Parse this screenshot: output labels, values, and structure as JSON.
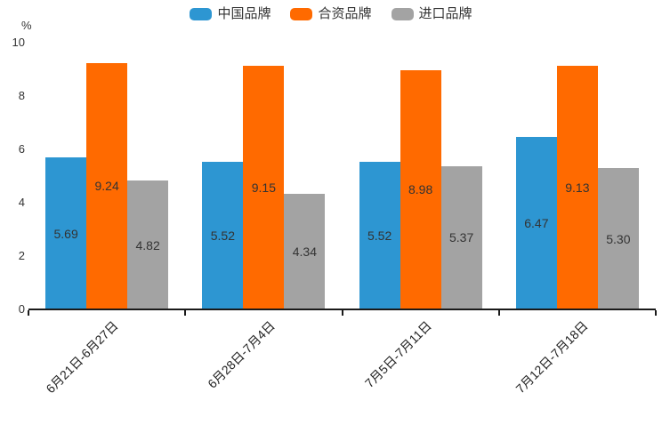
{
  "chart_data": {
    "type": "bar",
    "title": "",
    "categories": [
      "6月21日-6月27日",
      "6月28日-7月4日",
      "7月5日-7月11日",
      "7月12日-7月18日"
    ],
    "series": [
      {
        "name": "中国品牌",
        "color": "#2D96D2",
        "values": [
          5.69,
          5.52,
          5.52,
          6.47
        ]
      },
      {
        "name": "合资品牌",
        "color": "#FF6A00",
        "values": [
          9.24,
          9.15,
          8.98,
          9.13
        ]
      },
      {
        "name": "进口品牌",
        "color": "#A3A3A3",
        "values": [
          4.82,
          4.34,
          5.37,
          5.3
        ]
      }
    ],
    "xlabel": "",
    "ylabel": "%",
    "y_axis": {
      "min": 0,
      "max": 10,
      "tick_step": 2,
      "ticks": [
        0,
        2,
        4,
        6,
        8,
        10
      ],
      "unit": "%"
    },
    "legend_position": "top",
    "grid": false,
    "bar_value_labels": true,
    "value_label_decimals": 2,
    "x_label_rotation_deg": 45,
    "colors": {
      "axis_line": "#1a1a1a",
      "tick_text": "#333333",
      "value_label_text": "#333333",
      "background": "#ffffff"
    }
  }
}
